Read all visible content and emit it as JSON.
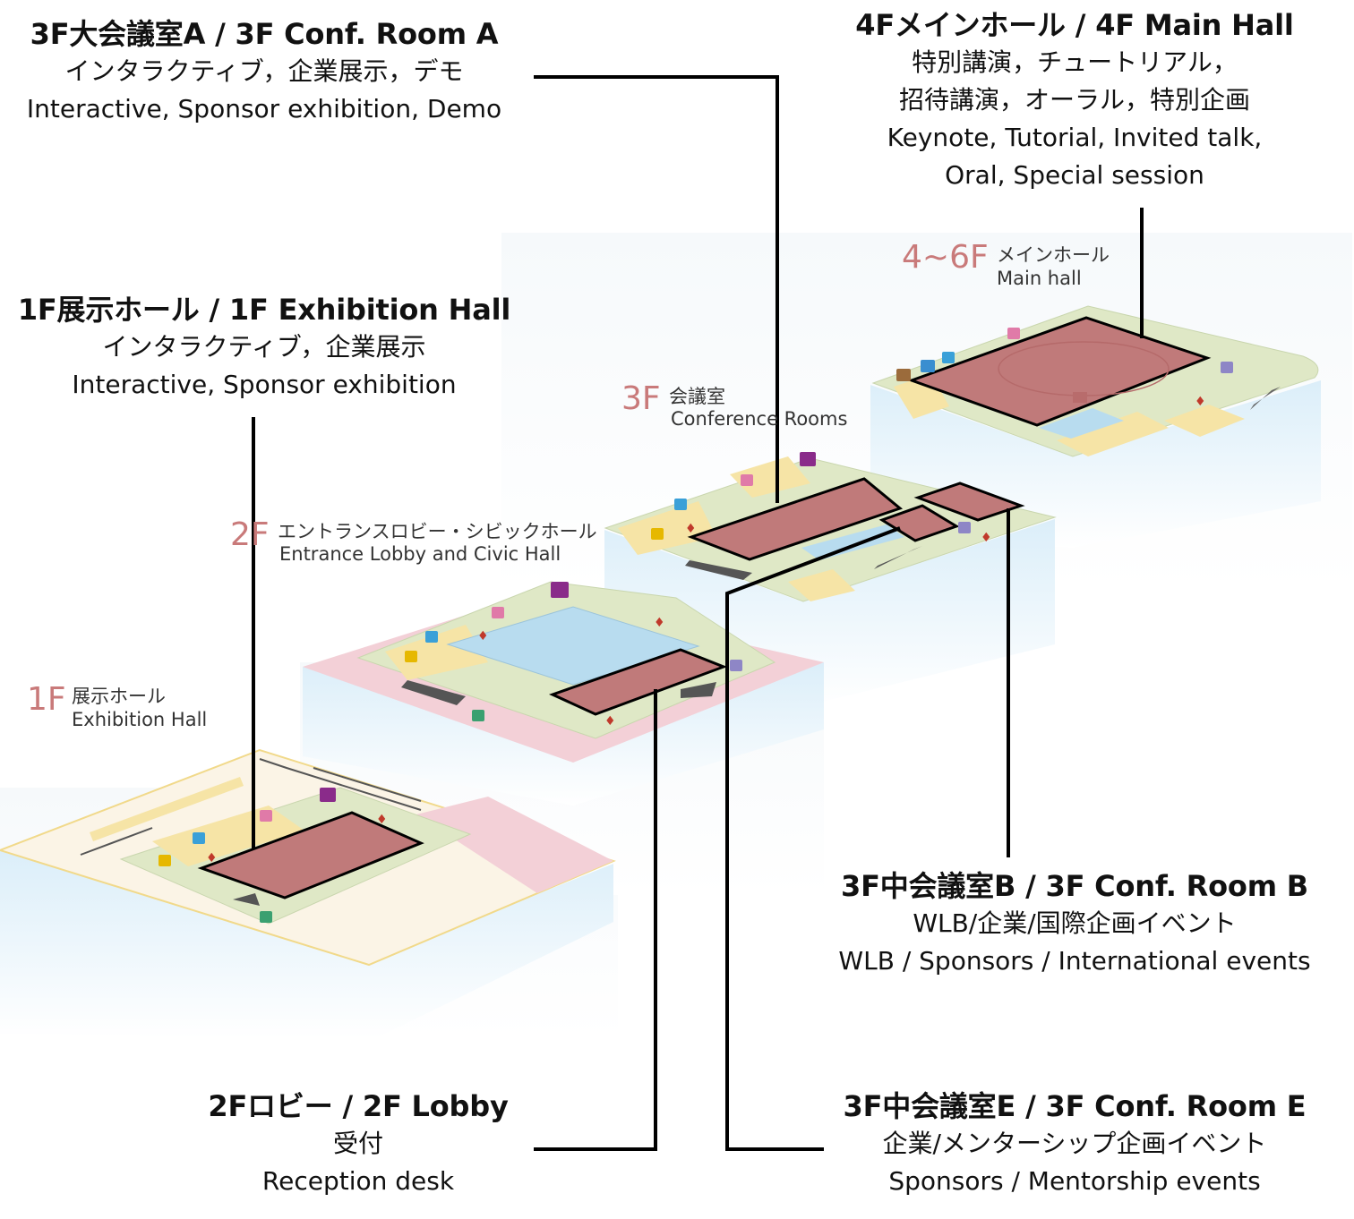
{
  "callouts": {
    "conf_a": {
      "title": "3F大会議室A / 3F Conf. Room A",
      "desc_jp": "インタラクティブ，企業展示，デモ",
      "desc_en": "Interactive, Sponsor exhibition, Demo"
    },
    "main_hall": {
      "title": "4Fメインホール / 4F Main Hall",
      "desc_jp_1": "特別講演，チュートリアル，",
      "desc_jp_2": "招待講演，オーラル，特別企画",
      "desc_en_1": "Keynote, Tutorial, Invited talk,",
      "desc_en_2": "Oral, Special session"
    },
    "exhibition_hall": {
      "title": "1F展示ホール / 1F Exhibition Hall",
      "desc_jp": "インタラクティブ，企業展示",
      "desc_en": "Interactive, Sponsor exhibition"
    },
    "conf_b": {
      "title": "3F中会議室B / 3F Conf. Room B",
      "desc_jp": "WLB/企業/国際企画イベント",
      "desc_en": "WLB / Sponsors / International events"
    },
    "lobby": {
      "title": "2Fロビー / 2F Lobby",
      "desc_jp": "受付",
      "desc_en": "Reception desk"
    },
    "conf_e": {
      "title": "3F中会議室E / 3F Conf. Room E",
      "desc_jp": "企業/メンターシップ企画イベント",
      "desc_en": "Sponsors / Mentorship events"
    }
  },
  "floor_labels": {
    "f1": {
      "num": "1F",
      "jp": "展示ホール",
      "en": "Exhibition Hall"
    },
    "f2": {
      "num": "2F",
      "jp": "エントランスロビー・シビックホール",
      "en": "Entrance Lobby and Civic Hall"
    },
    "f3": {
      "num": "3F",
      "jp": "会議室",
      "en": "Conference Rooms"
    },
    "f4": {
      "num": "4~6F",
      "jp": "メインホール",
      "en": "Main hall"
    }
  },
  "colors": {
    "highlight_room": "#c07a7a",
    "floor_green": "#dfe8c6",
    "floor_yellow": "#f6e4a6",
    "floor_pink": "#f3d0d7",
    "water_blue": "#b8dcef",
    "wall_blue": "#e6f2fa",
    "label_pink": "#c97a7a",
    "leader_line": "#000000"
  },
  "icons": [
    "elevator-icon",
    "escalator-icon",
    "restroom-icon",
    "stairs-icon"
  ]
}
